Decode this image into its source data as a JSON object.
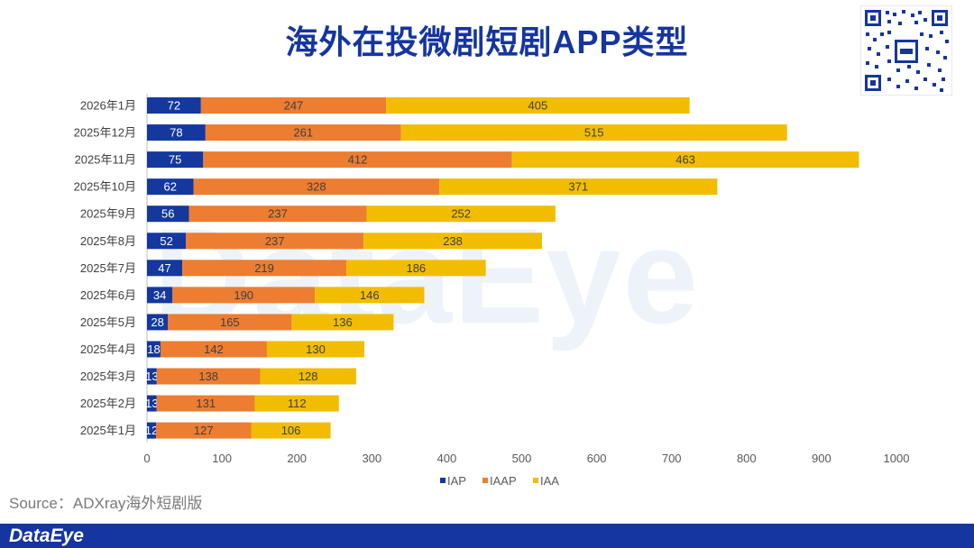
{
  "title": "海外在投微剧短剧APP类型",
  "watermark": "DataEye",
  "source": "Source：ADXray海外短剧版",
  "brand": "DataEye",
  "chart_data": {
    "type": "bar",
    "orientation": "horizontal",
    "stacked": true,
    "categories": [
      "2026年1月",
      "2025年12月",
      "2025年11月",
      "2025年10月",
      "2025年9月",
      "2025年8月",
      "2025年7月",
      "2025年6月",
      "2025年5月",
      "2025年4月",
      "2025年3月",
      "2025年2月",
      "2025年1月"
    ],
    "series": [
      {
        "name": "IAP",
        "color": "#14389e",
        "values": [
          72,
          78,
          75,
          62,
          56,
          52,
          47,
          34,
          28,
          18,
          13,
          13,
          12
        ]
      },
      {
        "name": "IAAP",
        "color": "#ed7d31",
        "values": [
          247,
          261,
          412,
          328,
          237,
          237,
          219,
          190,
          165,
          142,
          138,
          131,
          127
        ]
      },
      {
        "name": "IAA",
        "color": "#f2bd00",
        "values": [
          405,
          515,
          463,
          371,
          252,
          238,
          186,
          146,
          136,
          130,
          128,
          112,
          106
        ]
      }
    ],
    "xlim": [
      0,
      1000
    ],
    "xticks": [
      0,
      100,
      200,
      300,
      400,
      500,
      600,
      700,
      800,
      900,
      1000
    ],
    "legend": "bottom"
  }
}
